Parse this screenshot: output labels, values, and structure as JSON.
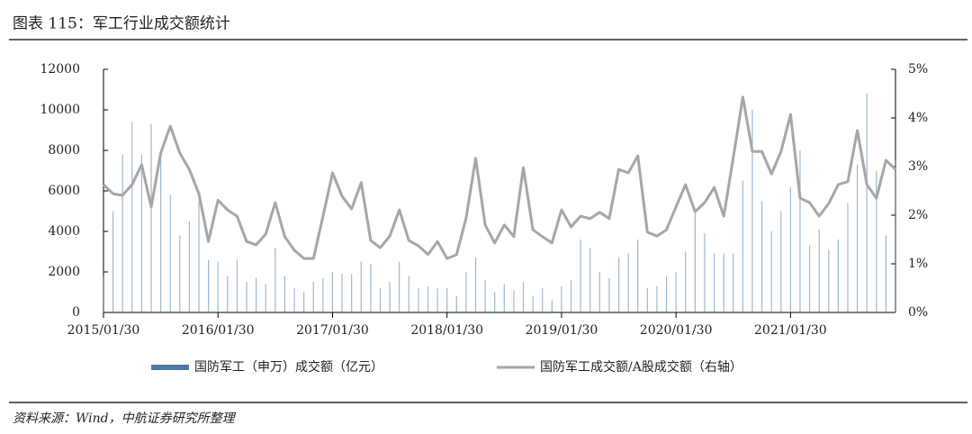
{
  "chart_data": {
    "type": "bar+line",
    "title": "图表 115：军工行业成交额统计",
    "source": "资料来源：Wind，中航证券研究所整理",
    "categories": [
      "2015/01/30",
      null,
      null,
      null,
      null,
      null,
      null,
      null,
      null,
      null,
      null,
      null,
      "2016/01/30",
      null,
      null,
      null,
      null,
      null,
      null,
      null,
      null,
      null,
      null,
      null,
      "2017/01/30",
      null,
      null,
      null,
      null,
      null,
      null,
      null,
      null,
      null,
      null,
      null,
      "2018/01/30",
      null,
      null,
      null,
      null,
      null,
      null,
      null,
      null,
      null,
      null,
      null,
      "2019/01/30",
      null,
      null,
      null,
      null,
      null,
      null,
      null,
      null,
      null,
      null,
      null,
      "2020/01/30",
      null,
      null,
      null,
      null,
      null,
      null,
      null,
      null,
      null,
      null,
      null,
      "2021/01/30",
      null,
      null,
      null,
      null,
      null,
      null,
      null,
      null,
      null,
      null,
      null
    ],
    "series": [
      {
        "name": "国防军工（申万）成交额（亿元）",
        "type": "bar",
        "color": "#4f7aa3",
        "values": [
          1800,
          5000,
          7800,
          9400,
          7800,
          9300,
          7800,
          5800,
          3800,
          4500,
          5500,
          2600,
          2500,
          1800,
          2600,
          1500,
          1700,
          1400,
          3200,
          1800,
          1200,
          1000,
          1500,
          1700,
          2000,
          1900,
          1900,
          2500,
          2400,
          1200,
          1500,
          2500,
          1800,
          1200,
          1300,
          1200,
          1200,
          800,
          2000,
          2700,
          1600,
          1000,
          1400,
          1100,
          1500,
          800,
          1200,
          600,
          1300,
          1600,
          3600,
          3200,
          2000,
          1700,
          2700,
          2900,
          3600,
          1200,
          1300,
          1800,
          2000,
          3000,
          5100,
          3900,
          2900,
          2900,
          2900,
          6500,
          10000,
          5500,
          4000,
          5000,
          6200,
          8000,
          3300,
          4100,
          3100,
          3600,
          5400,
          7300,
          10800,
          7000,
          3800,
          7500
        ]
      },
      {
        "name": "国防军工成交额/A股成交额（右轴）",
        "type": "line",
        "axis": "y2",
        "color": "#a6a6a6",
        "values": [
          2.63,
          2.44,
          2.41,
          2.63,
          3.04,
          2.17,
          3.28,
          3.83,
          3.28,
          2.94,
          2.44,
          1.46,
          2.31,
          2.11,
          1.98,
          1.46,
          1.39,
          1.61,
          2.26,
          1.56,
          1.28,
          1.11,
          1.11,
          1.98,
          2.87,
          2.39,
          2.13,
          2.67,
          1.48,
          1.33,
          1.57,
          2.11,
          1.48,
          1.37,
          1.19,
          1.46,
          1.11,
          1.19,
          1.94,
          3.17,
          1.8,
          1.43,
          1.8,
          1.56,
          2.98,
          1.7,
          1.56,
          1.43,
          2.11,
          1.76,
          1.98,
          1.93,
          2.06,
          1.93,
          2.94,
          2.87,
          3.22,
          1.65,
          1.57,
          1.7,
          2.17,
          2.63,
          2.07,
          2.26,
          2.57,
          1.98,
          3.19,
          4.43,
          3.31,
          3.31,
          2.85,
          3.31,
          4.07,
          2.35,
          2.26,
          1.98,
          2.24,
          2.63,
          2.69,
          3.74,
          2.63,
          2.35,
          3.13,
          2.94
        ]
      }
    ],
    "ylim": [
      0,
      12000
    ],
    "yticks": [
      0,
      2000,
      4000,
      6000,
      8000,
      10000,
      12000
    ],
    "y2lim": [
      0,
      5
    ],
    "y2ticks": [
      {
        "value": 0,
        "label": "0%"
      },
      {
        "value": 1,
        "label": "1%"
      },
      {
        "value": 2,
        "label": "2%"
      },
      {
        "value": 3,
        "label": "3%"
      },
      {
        "value": 4,
        "label": "4%"
      },
      {
        "value": 5,
        "label": "5%"
      }
    ],
    "legend": "bottom"
  }
}
